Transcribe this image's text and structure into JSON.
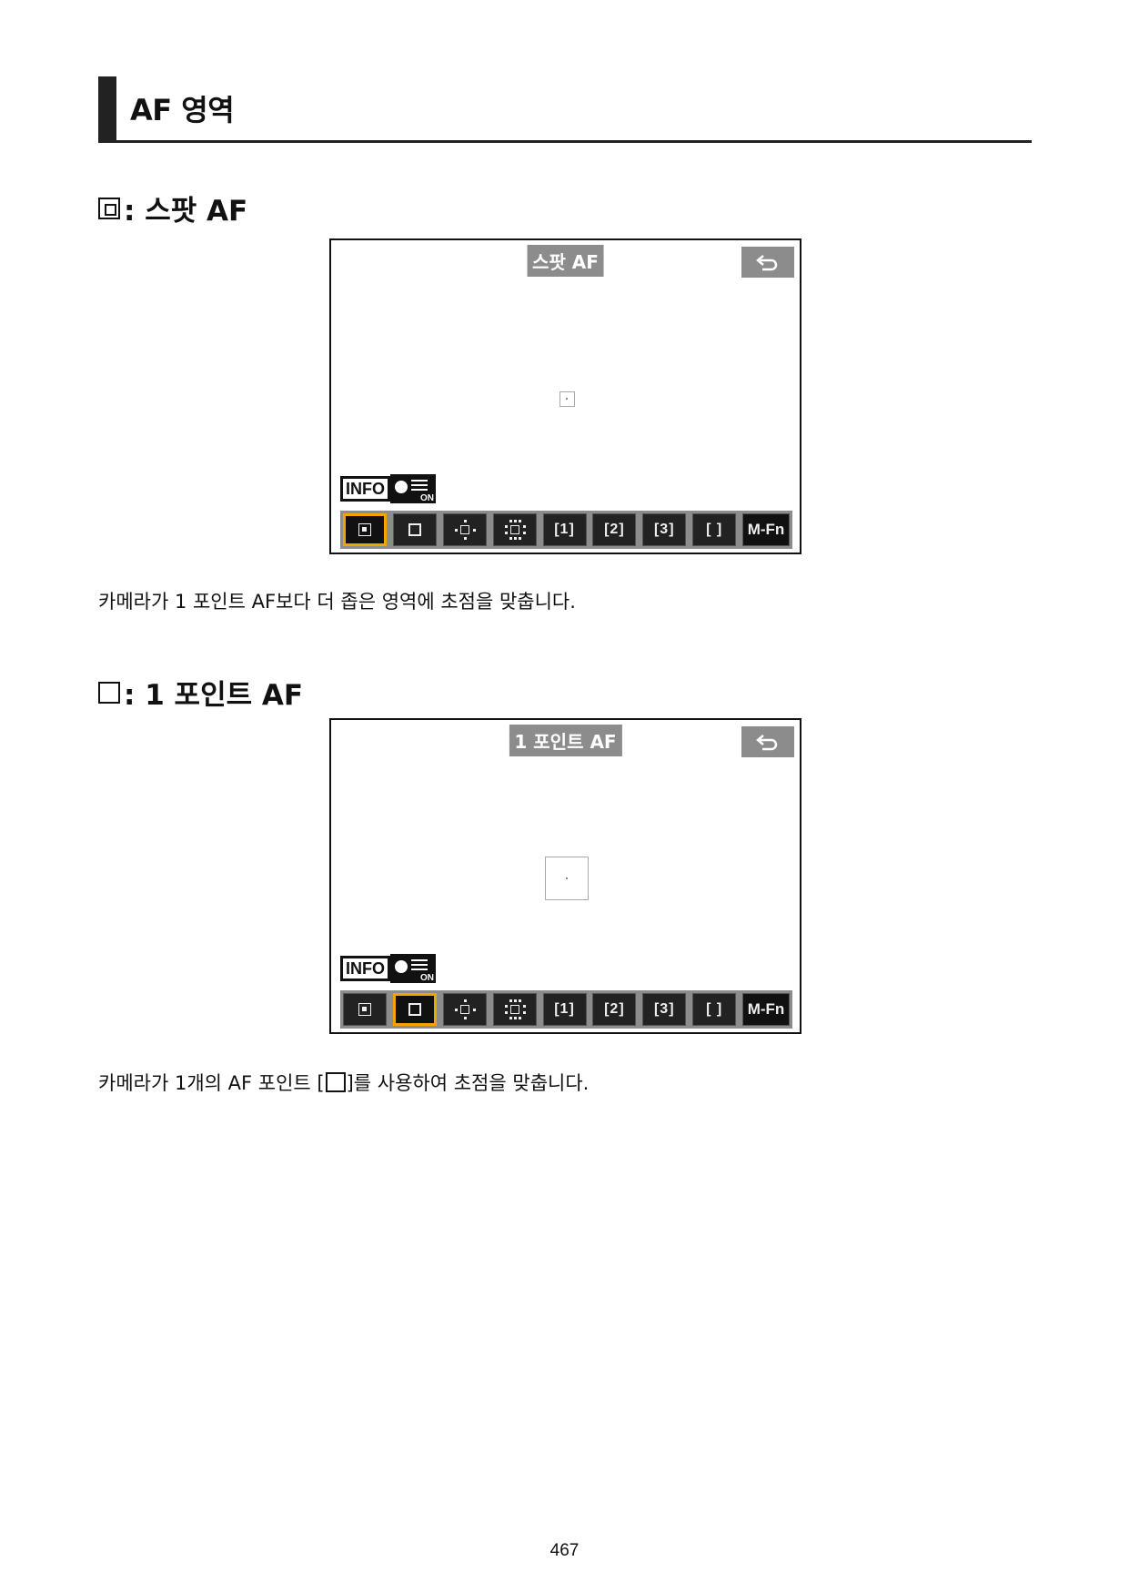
{
  "page_title": "AF 영역",
  "sections": [
    {
      "heading": ": 스팟 AF",
      "screen": {
        "mode_title": "스팟 AF",
        "info_label": "INFO",
        "info_on_label": "ON",
        "selected_mode": "spot-af",
        "modes": [
          "",
          "",
          "",
          "",
          "[1]",
          "[2]",
          "[3]",
          "[ ]",
          "M-Fn"
        ]
      },
      "caption": "카메라가 1 포인트 AF보다 더 좁은 영역에 초점을 맞춥니다."
    },
    {
      "heading": ": 1 포인트 AF",
      "screen": {
        "mode_title": "1 포인트 AF",
        "info_label": "INFO",
        "info_on_label": "ON",
        "selected_mode": "1-point-af",
        "modes": [
          "",
          "",
          "",
          "",
          "[1]",
          "[2]",
          "[3]",
          "[ ]",
          "M-Fn"
        ]
      },
      "caption_before": "카메라가 1개의 AF 포인트 [",
      "caption_after": "]를 사용하여 초점을 맞춥니다."
    }
  ],
  "icons": {
    "back": "return-arrow-icon",
    "spot": "spot-af-icon",
    "point": "1-point-af-icon",
    "expand_cross": "expand-af-cross-icon",
    "expand_around": "expand-af-around-icon",
    "flexible_zone": "flexible-zone-icon",
    "whole_area": "whole-area-af-icon"
  },
  "colors": {
    "selected_border": "#f0a500",
    "bar_gray": "#8c8c8c"
  },
  "page_number": "467"
}
